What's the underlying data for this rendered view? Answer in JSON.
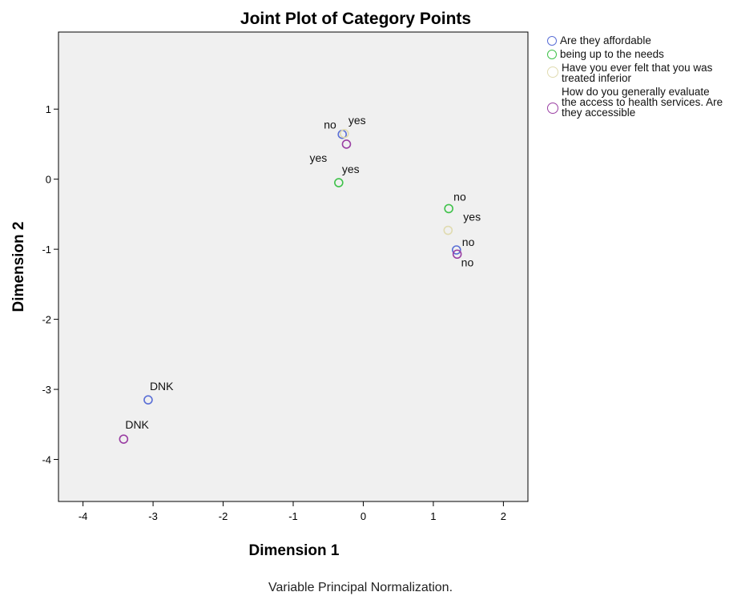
{
  "chart_data": {
    "type": "scatter",
    "title": "Joint Plot of Category Points",
    "xlabel": "Dimension 1",
    "ylabel": "Dimension 2",
    "footnote": "Variable Principal Normalization.",
    "xlim": [
      -4.35,
      2.35
    ],
    "ylim": [
      -4.6,
      2.1
    ],
    "xticks": [
      -4,
      -3,
      -2,
      -1,
      0,
      1,
      2
    ],
    "yticks": [
      -4,
      -3,
      -2,
      -1,
      0,
      1
    ],
    "grid": false,
    "legend_position": "right",
    "plot_background": "#f0f0f0",
    "series": [
      {
        "name": "Are they affordable",
        "color": "#5a6fd6",
        "points": [
          {
            "x": -0.3,
            "y": 0.64,
            "label": "no"
          },
          {
            "x": 1.33,
            "y": -1.01,
            "label": "no"
          },
          {
            "x": -3.07,
            "y": -3.15,
            "label": "DNK"
          }
        ]
      },
      {
        "name": "being up to the needs",
        "color": "#3fc24a",
        "points": [
          {
            "x": -0.35,
            "y": -0.05,
            "label": "yes"
          },
          {
            "x": 1.22,
            "y": -0.42,
            "label": "no"
          }
        ]
      },
      {
        "name": "Have you ever felt that you was treated inferior",
        "color": "#e0dbb0",
        "points": [
          {
            "x": -0.27,
            "y": 0.65,
            "label": "yes"
          },
          {
            "x": 1.21,
            "y": -0.73,
            "label": "yes"
          }
        ]
      },
      {
        "name": "How do you generally evaluate the access to health services. Are they accessible",
        "color": "#9a3fa3",
        "points": [
          {
            "x": -0.24,
            "y": 0.5,
            "label": "yes"
          },
          {
            "x": 1.34,
            "y": -1.07,
            "label": "no"
          },
          {
            "x": -3.42,
            "y": -3.71,
            "label": "DNK"
          }
        ]
      }
    ]
  }
}
